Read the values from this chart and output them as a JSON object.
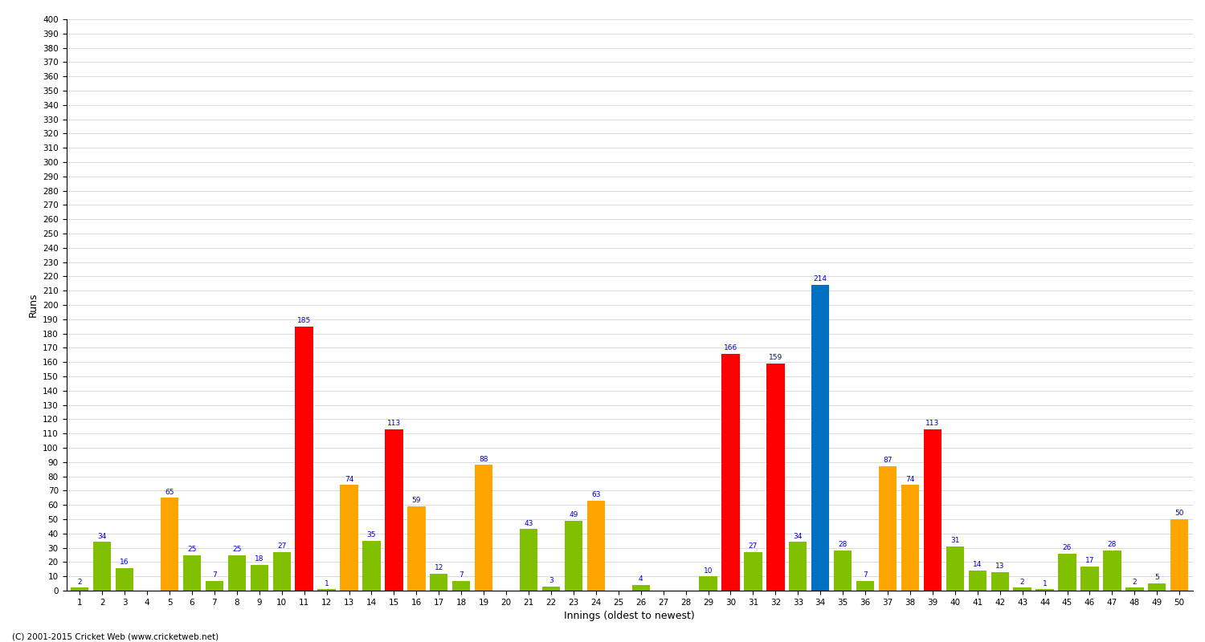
{
  "title": "",
  "xlabel": "Innings (oldest to newest)",
  "ylabel": "Runs",
  "innings": [
    1,
    2,
    3,
    4,
    5,
    6,
    7,
    8,
    9,
    10,
    11,
    12,
    13,
    14,
    15,
    16,
    17,
    18,
    19,
    20,
    21,
    22,
    23,
    24,
    25,
    26,
    27,
    28,
    29,
    30,
    31,
    32,
    33,
    34,
    35,
    36,
    37,
    38,
    39,
    40,
    41,
    42,
    43,
    44,
    45,
    46,
    47,
    48,
    49,
    50
  ],
  "values": [
    2,
    34,
    16,
    0,
    65,
    25,
    7,
    25,
    18,
    27,
    185,
    1,
    74,
    35,
    113,
    59,
    12,
    7,
    88,
    0,
    43,
    3,
    49,
    63,
    0,
    4,
    0,
    0,
    10,
    166,
    27,
    159,
    34,
    214,
    28,
    7,
    87,
    74,
    113,
    31,
    14,
    13,
    2,
    1,
    26,
    17,
    28,
    2,
    5,
    50
  ],
  "colors": [
    "#80c000",
    "#80c000",
    "#80c000",
    "#80c000",
    "#ffa500",
    "#80c000",
    "#80c000",
    "#80c000",
    "#80c000",
    "#80c000",
    "#ff0000",
    "#80c000",
    "#ffa500",
    "#80c000",
    "#ff0000",
    "#ffa500",
    "#80c000",
    "#80c000",
    "#ffa500",
    "#80c000",
    "#80c000",
    "#80c000",
    "#80c000",
    "#ffa500",
    "#80c000",
    "#80c000",
    "#80c000",
    "#80c000",
    "#80c000",
    "#ff0000",
    "#80c000",
    "#ff0000",
    "#80c000",
    "#0070c0",
    "#80c000",
    "#80c000",
    "#ffa500",
    "#ffa500",
    "#ff0000",
    "#80c000",
    "#80c000",
    "#80c000",
    "#80c000",
    "#80c000",
    "#80c000",
    "#80c000",
    "#80c000",
    "#80c000",
    "#80c000",
    "#ffa500"
  ],
  "ylim": [
    0,
    400
  ],
  "yticks": [
    0,
    10,
    20,
    30,
    40,
    50,
    60,
    70,
    80,
    90,
    100,
    110,
    120,
    130,
    140,
    150,
    160,
    170,
    180,
    190,
    200,
    210,
    220,
    230,
    240,
    250,
    260,
    270,
    280,
    290,
    300,
    310,
    320,
    330,
    340,
    350,
    360,
    370,
    380,
    390,
    400
  ],
  "label_color": "#0000cc",
  "label_fontsize": 6.5,
  "tick_fontsize": 7.5,
  "bg_color": "#ffffff",
  "grid_color": "#cccccc",
  "footer": "(C) 2001-2015 Cricket Web (www.cricketweb.net)"
}
